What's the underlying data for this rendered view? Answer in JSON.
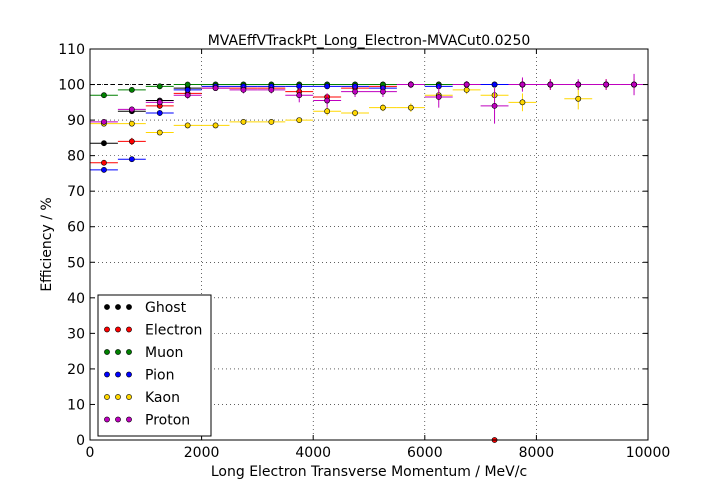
{
  "chart_data": {
    "type": "scatter",
    "title": "MVAEffVTrackPt_Long_Electron-MVACut0.0250",
    "xlabel": "Long Electron Transverse Momentum / MeV/c",
    "ylabel": "Efficiency / %",
    "xlim": [
      0,
      10000
    ],
    "ylim": [
      0,
      110
    ],
    "xticks": [
      "0",
      "2000",
      "4000",
      "6000",
      "8000",
      "10000"
    ],
    "yticks": [
      "0",
      "10",
      "20",
      "30",
      "40",
      "50",
      "60",
      "70",
      "80",
      "90",
      "100",
      "110"
    ],
    "grid": true,
    "reference_line_y": 100,
    "legend_position": "lower-left",
    "bin_centers": [
      250,
      750,
      1250,
      1750,
      2250,
      2750,
      3250,
      3750,
      4250,
      4750,
      5250,
      5750,
      6250,
      6750,
      7250,
      7750,
      8250,
      8750,
      9250,
      9750
    ],
    "bin_half_width": 250,
    "series": [
      {
        "name": "Ghost",
        "color": "#000000",
        "x": [
          250,
          750,
          1250,
          1750,
          2250,
          2750,
          3250,
          3750,
          4250,
          4750,
          5250,
          5750,
          6250,
          6750,
          7250,
          7750,
          8250,
          8750,
          9250,
          9750
        ],
        "y": [
          83.5,
          92.5,
          95.5,
          99.0,
          100,
          100,
          100,
          100,
          100,
          100,
          100,
          100,
          100,
          100,
          100,
          100,
          100,
          100,
          100,
          100
        ],
        "err": [
          0.5,
          0.5,
          0.5,
          0.3,
          0.2,
          0.2,
          0.2,
          0.2,
          0.2,
          0.2,
          0.2,
          0.2,
          0.2,
          0.2,
          0.2,
          0.2,
          0.2,
          0.2,
          0.2,
          0.2
        ]
      },
      {
        "name": "Electron",
        "color": "#ff0000",
        "x": [
          250,
          750,
          1250,
          1750,
          2250,
          2750,
          3250,
          3750,
          4250,
          4750,
          5250,
          5750,
          6250,
          6750,
          7250,
          7750,
          8250,
          8750,
          9250,
          9750
        ],
        "y": [
          78.0,
          84.0,
          94.0,
          97.5,
          99.0,
          99.0,
          99.0,
          98.0,
          96.5,
          99.0,
          99.5,
          100,
          100,
          100,
          0.0,
          100,
          100,
          100,
          100,
          100
        ],
        "err": [
          0.8,
          1.0,
          0.8,
          0.6,
          0.5,
          0.5,
          0.6,
          0.8,
          1.0,
          0.6,
          0.5,
          0.5,
          0.8,
          0.8,
          0.5,
          1.5,
          1.5,
          1.0,
          1.5,
          1.5
        ]
      },
      {
        "name": "Muon",
        "color": "#008000",
        "x": [
          250,
          750,
          1250,
          1750,
          2250,
          2750,
          3250,
          3750,
          4250,
          4750,
          5250,
          5750,
          6250,
          6750,
          7250,
          7750,
          8250,
          8750,
          9250,
          9750
        ],
        "y": [
          97.0,
          98.5,
          99.5,
          100,
          100,
          100,
          100,
          100,
          100,
          100,
          100,
          100,
          100,
          100,
          100,
          100,
          100,
          100,
          100,
          100
        ],
        "err": [
          0.3,
          0.3,
          0.3,
          0.2,
          0.2,
          0.2,
          0.2,
          0.2,
          0.2,
          0.2,
          0.2,
          0.2,
          0.2,
          0.2,
          0.2,
          0.2,
          0.2,
          0.2,
          0.2,
          0.2
        ]
      },
      {
        "name": "Pion",
        "color": "#0000ff",
        "x": [
          250,
          750,
          1250,
          1750,
          2250,
          2750,
          3250,
          3750,
          4250,
          4750,
          5250,
          5750,
          6250,
          6750,
          7250,
          7750,
          8250,
          8750,
          9250,
          9750
        ],
        "y": [
          76.0,
          79.0,
          92.0,
          98.5,
          99.5,
          99.5,
          99.5,
          99.5,
          99.5,
          99.5,
          99.0,
          100,
          99.5,
          100,
          100,
          100,
          100,
          100,
          100,
          100
        ],
        "err": [
          0.8,
          0.6,
          0.8,
          0.4,
          0.3,
          0.3,
          0.3,
          0.3,
          0.3,
          0.3,
          0.4,
          0.3,
          0.4,
          0.3,
          0.3,
          0.3,
          0.3,
          0.3,
          0.3,
          0.3
        ]
      },
      {
        "name": "Kaon",
        "color": "#ffd700",
        "x": [
          250,
          750,
          1250,
          1750,
          2250,
          2750,
          3250,
          3750,
          4250,
          4750,
          5250,
          5750,
          6250,
          6750,
          7250,
          7750,
          8250,
          8750,
          9250,
          9750
        ],
        "y": [
          89.0,
          89.0,
          86.5,
          88.5,
          88.5,
          89.5,
          89.5,
          90.0,
          92.5,
          92.0,
          93.5,
          93.5,
          97.0,
          98.5,
          97.0,
          95.0,
          100,
          96.0,
          100,
          100
        ],
        "err": [
          0.5,
          0.5,
          0.6,
          0.5,
          0.5,
          0.5,
          0.6,
          0.7,
          1.2,
          1.0,
          1.0,
          1.2,
          1.5,
          1.2,
          2.0,
          2.5,
          1.0,
          3.0,
          1.0,
          1.5
        ]
      },
      {
        "name": "Proton",
        "color": "#bf00bf",
        "x": [
          250,
          750,
          1250,
          1750,
          2250,
          2750,
          3250,
          3750,
          4250,
          4750,
          5250,
          5750,
          6250,
          6750,
          7250,
          7750,
          8250,
          8750,
          9250,
          9750
        ],
        "y": [
          89.5,
          93.0,
          95.0,
          97.0,
          99.0,
          98.5,
          98.5,
          97.0,
          95.5,
          98.0,
          98.0,
          100,
          96.5,
          100,
          94.0,
          100,
          100,
          100,
          100,
          100
        ],
        "err": [
          0.8,
          0.8,
          1.0,
          1.0,
          0.8,
          1.0,
          1.0,
          2.0,
          2.0,
          1.5,
          1.5,
          1.0,
          3.0,
          1.0,
          5.0,
          2.0,
          1.5,
          1.5,
          1.5,
          3.0
        ]
      }
    ]
  }
}
